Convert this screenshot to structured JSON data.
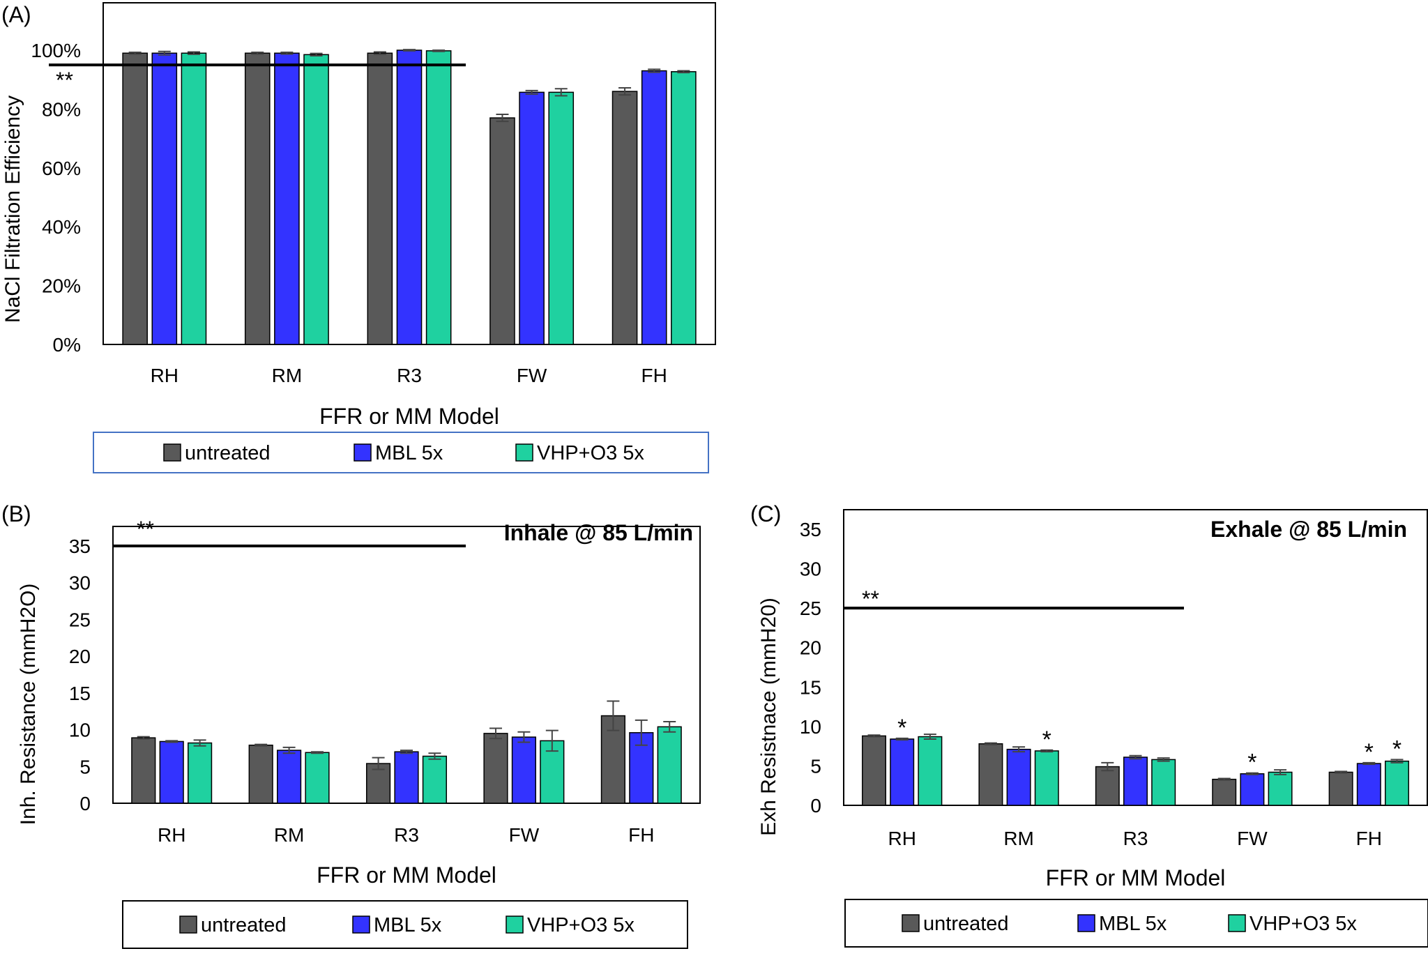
{
  "colors": {
    "untreated": "#595959",
    "mbl": "#3333ff",
    "vhp": "#1fd1a0",
    "axis": "#000000",
    "legend_border_a": "#4472c4",
    "legend_border_bc": "#000000"
  },
  "chart_data": [
    {
      "panel_label": "(A)",
      "type": "bar",
      "title": "",
      "xlabel": "FFR or MM Model",
      "ylabel": "NaCl Filtration Efficiency",
      "categories": [
        "RH",
        "RM",
        "R3",
        "FW",
        "FH"
      ],
      "ylim": [
        0,
        1
      ],
      "yticks": [
        "0%",
        "20%",
        "40%",
        "60%",
        "80%",
        "100%"
      ],
      "series": [
        {
          "name": "untreated",
          "values": [
            0.99,
            0.99,
            0.99,
            0.77,
            0.86
          ],
          "errors": [
            0.003,
            0.003,
            0.004,
            0.012,
            0.012
          ]
        },
        {
          "name": "MBL 5x",
          "values": [
            0.99,
            0.99,
            1.0,
            0.857,
            0.93
          ],
          "errors": [
            0.006,
            0.003,
            0.002,
            0.006,
            0.005
          ]
        },
        {
          "name": "VHP+O3 5x",
          "values": [
            0.99,
            0.985,
            0.998,
            0.857,
            0.927
          ],
          "errors": [
            0.004,
            0.004,
            0.002,
            0.012,
            0.003
          ]
        }
      ],
      "reference_line": {
        "value": 0.95,
        "label": "**",
        "x_extent": "RH–R3"
      },
      "grid": false,
      "legend": "bottom"
    },
    {
      "panel_label": "(B)",
      "type": "bar",
      "title": "Inhale @ 85 L/min",
      "xlabel": "FFR or MM Model",
      "ylabel": "Inh. Resistance (mmH2O)",
      "categories": [
        "RH",
        "RM",
        "R3",
        "FW",
        "FH"
      ],
      "ylim": [
        0,
        35
      ],
      "yticks": [
        "0",
        "5",
        "10",
        "15",
        "20",
        "25",
        "30",
        "35"
      ],
      "series": [
        {
          "name": "untreated",
          "values": [
            8.9,
            7.9,
            5.4,
            9.5,
            11.9
          ],
          "errors": [
            0.15,
            0.1,
            0.8,
            0.7,
            2.0
          ]
        },
        {
          "name": "MBL 5x",
          "values": [
            8.4,
            7.2,
            7.0,
            9.0,
            9.6
          ],
          "errors": [
            0.1,
            0.4,
            0.2,
            0.7,
            1.7
          ]
        },
        {
          "name": "VHP+O3 5x",
          "values": [
            8.2,
            6.9,
            6.4,
            8.5,
            10.4
          ],
          "errors": [
            0.4,
            0.1,
            0.4,
            1.4,
            0.7
          ]
        }
      ],
      "reference_line": {
        "value": 35,
        "label": "**",
        "x_extent": "RH–R3"
      },
      "grid": false,
      "legend": "bottom"
    },
    {
      "panel_label": "(C)",
      "type": "bar",
      "title": "Exhale @ 85 L/min",
      "xlabel": "FFR or MM Model",
      "ylabel": "Exh Resistnace (mmH20)",
      "categories": [
        "RH",
        "RM",
        "R3",
        "FW",
        "FH"
      ],
      "ylim": [
        0,
        35
      ],
      "yticks": [
        "0",
        "5",
        "10",
        "15",
        "20",
        "25",
        "30",
        "35"
      ],
      "series": [
        {
          "name": "untreated",
          "values": [
            8.8,
            7.8,
            4.9,
            3.3,
            4.2
          ],
          "errors": [
            0.1,
            0.1,
            0.5,
            0.1,
            0.1
          ],
          "markers": [
            "",
            "",
            "",
            "",
            ""
          ]
        },
        {
          "name": "MBL 5x",
          "values": [
            8.4,
            7.1,
            6.1,
            4.0,
            5.3
          ],
          "errors": [
            0.1,
            0.3,
            0.2,
            0.1,
            0.1
          ],
          "markers": [
            "*",
            "",
            "",
            "*",
            "*"
          ]
        },
        {
          "name": "VHP+O3 5x",
          "values": [
            8.7,
            6.9,
            5.8,
            4.2,
            5.6
          ],
          "errors": [
            0.3,
            0.1,
            0.2,
            0.3,
            0.2
          ],
          "markers": [
            "",
            "*",
            "",
            "",
            "*"
          ]
        }
      ],
      "reference_line": {
        "value": 25,
        "label": "**",
        "x_extent": "RH–R3"
      },
      "grid": false,
      "legend": "bottom"
    }
  ]
}
